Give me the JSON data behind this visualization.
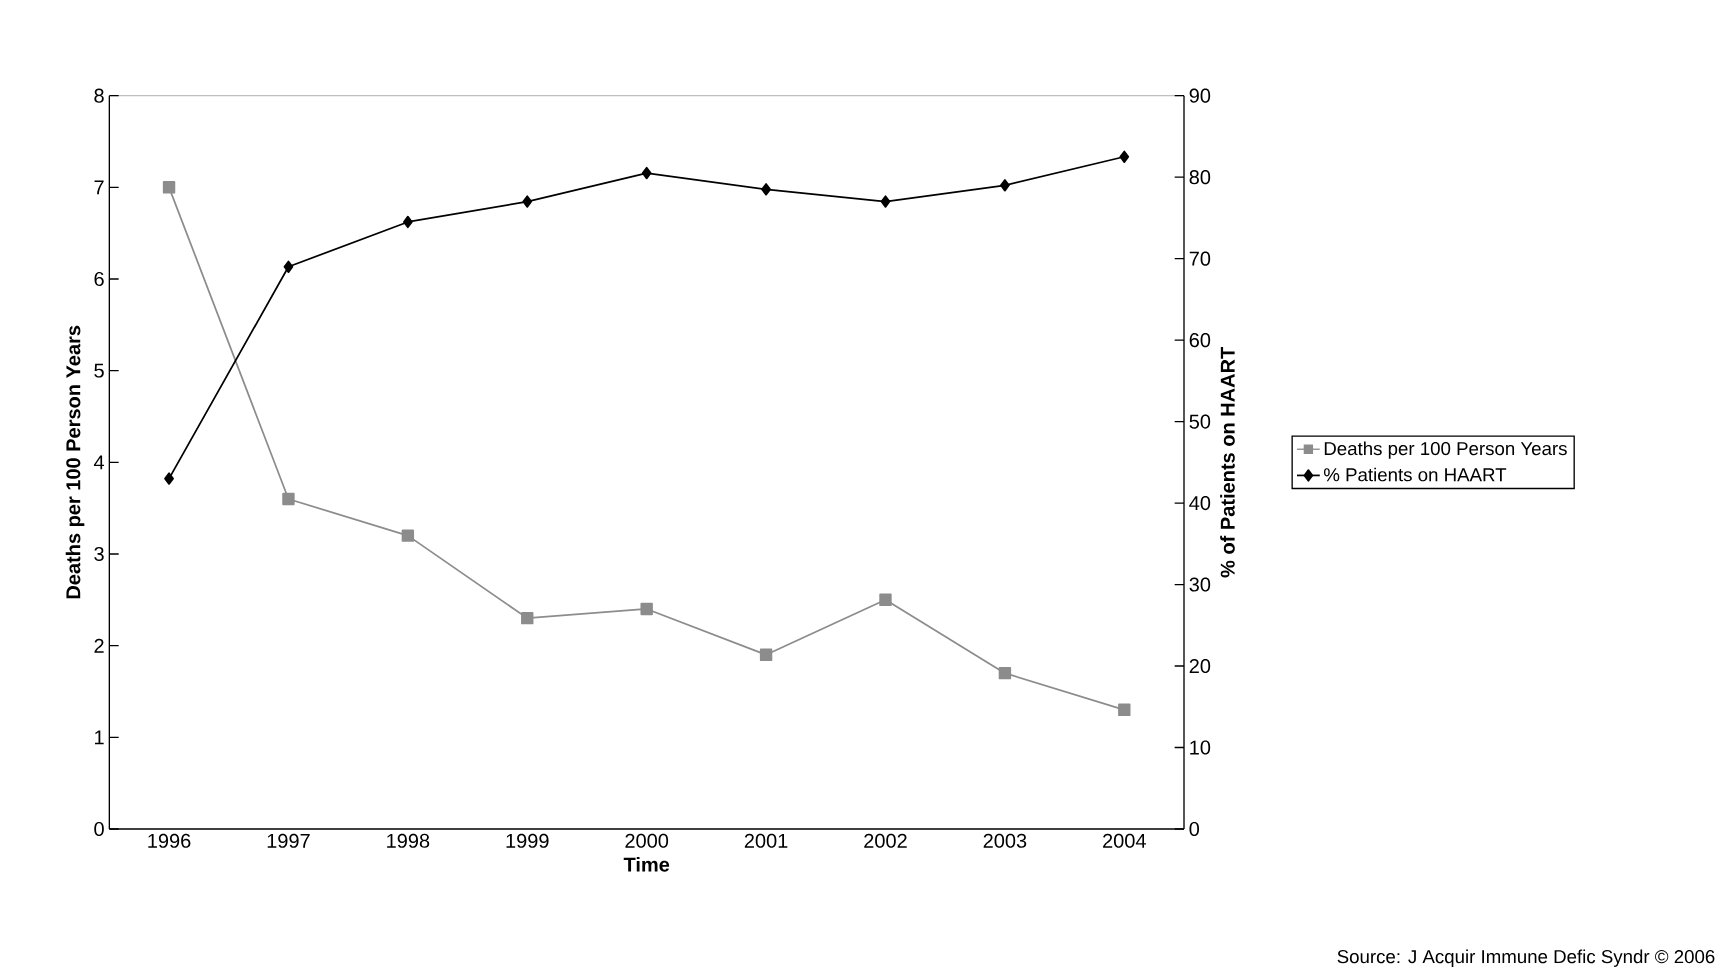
{
  "chart_data": {
    "type": "line",
    "xlabel": "Time",
    "ylabel": "Deaths per 100 Person Years",
    "y2label": "% of Patients on HAART",
    "categories": [
      "1996",
      "1997",
      "1998",
      "1999",
      "2000",
      "2001",
      "2002",
      "2003",
      "2004"
    ],
    "series": [
      {
        "name": "Deaths per 100 Person Years",
        "color": "#8c8c8c",
        "marker": "square",
        "values": [
          7.0,
          3.6,
          3.2,
          2.3,
          2.4,
          1.9,
          2.5,
          1.7,
          1.3
        ]
      },
      {
        "name": "% Patients on HAART",
        "color": "#000000",
        "marker": "diamond",
        "axis": "y2",
        "values": [
          43,
          69,
          74.5,
          77,
          80.5,
          78.5,
          77,
          79,
          82.5
        ]
      }
    ],
    "ylim": [
      0,
      8
    ],
    "yticks": [
      0,
      1,
      2,
      3,
      4,
      5,
      6,
      7,
      8
    ],
    "y2lim": [
      0,
      90
    ],
    "y2ticks": [
      0,
      10,
      20,
      30,
      40,
      50,
      60,
      70,
      80,
      90
    ],
    "legend": "right",
    "annotations": [
      "Source: J Acquir Immune Defic Syndr © 2006"
    ]
  }
}
